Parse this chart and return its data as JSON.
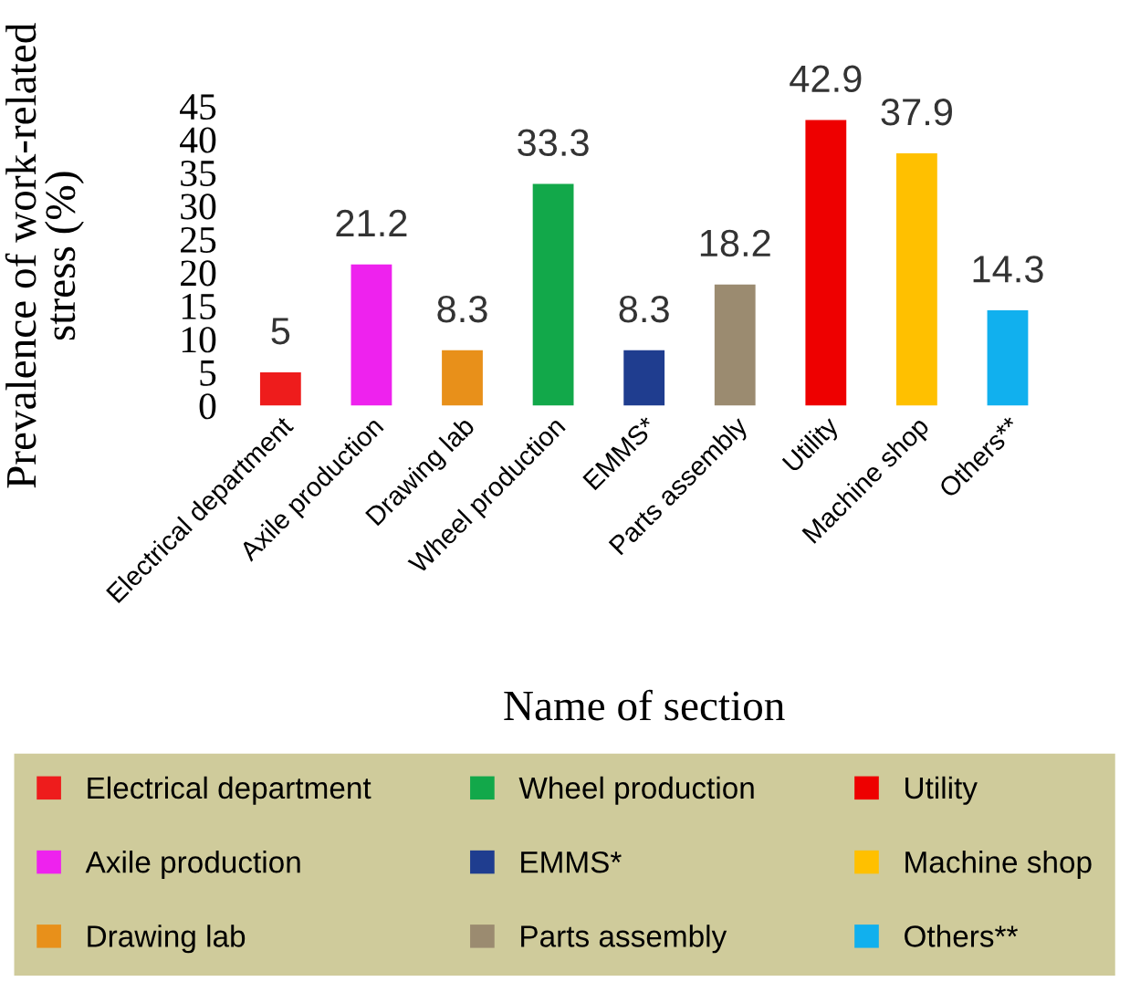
{
  "chart_data": {
    "type": "bar",
    "xlabel": "Name of section",
    "ylabel": "Prevalence of work-related stress (%)",
    "categories": [
      "Electrical department",
      "Axile production",
      "Drawing lab",
      "Wheel production",
      "EMMS*",
      "Parts assembly",
      "Utility",
      "Machine shop",
      "Others**"
    ],
    "series": [
      {
        "name": "Electrical department",
        "color": "#ee1c1c",
        "values": [
          5,
          null,
          null,
          null,
          null,
          null,
          null,
          null,
          null
        ]
      },
      {
        "name": "Axile production",
        "color": "#ee22ee",
        "values": [
          null,
          21.2,
          null,
          null,
          null,
          null,
          null,
          null,
          null
        ]
      },
      {
        "name": "Drawing lab",
        "color": "#e8901a",
        "values": [
          null,
          null,
          8.3,
          null,
          null,
          null,
          null,
          null,
          null
        ]
      },
      {
        "name": "Wheel production",
        "color": "#12a84a",
        "values": [
          null,
          null,
          null,
          33.3,
          null,
          null,
          null,
          null,
          null
        ]
      },
      {
        "name": "EMMS*",
        "color": "#1f3d8f",
        "values": [
          null,
          null,
          null,
          null,
          8.3,
          null,
          null,
          null,
          null
        ]
      },
      {
        "name": "Parts assembly",
        "color": "#9b8b70",
        "values": [
          null,
          null,
          null,
          null,
          null,
          18.2,
          null,
          null,
          null
        ]
      },
      {
        "name": "Utility",
        "color": "#ee0000",
        "values": [
          null,
          null,
          null,
          null,
          null,
          null,
          42.9,
          null,
          null
        ]
      },
      {
        "name": "Machine shop",
        "color": "#ffc000",
        "values": [
          null,
          null,
          null,
          null,
          null,
          null,
          null,
          37.9,
          null
        ]
      },
      {
        "name": "Others**",
        "color": "#11b0ee",
        "values": [
          null,
          null,
          null,
          null,
          null,
          null,
          null,
          null,
          14.3
        ]
      }
    ],
    "ylim": [
      0,
      45
    ],
    "yticks": [
      0,
      5,
      10,
      15,
      20,
      25,
      30,
      35,
      40,
      45
    ],
    "data_labels": true,
    "grid": false,
    "legend": "bottom"
  }
}
